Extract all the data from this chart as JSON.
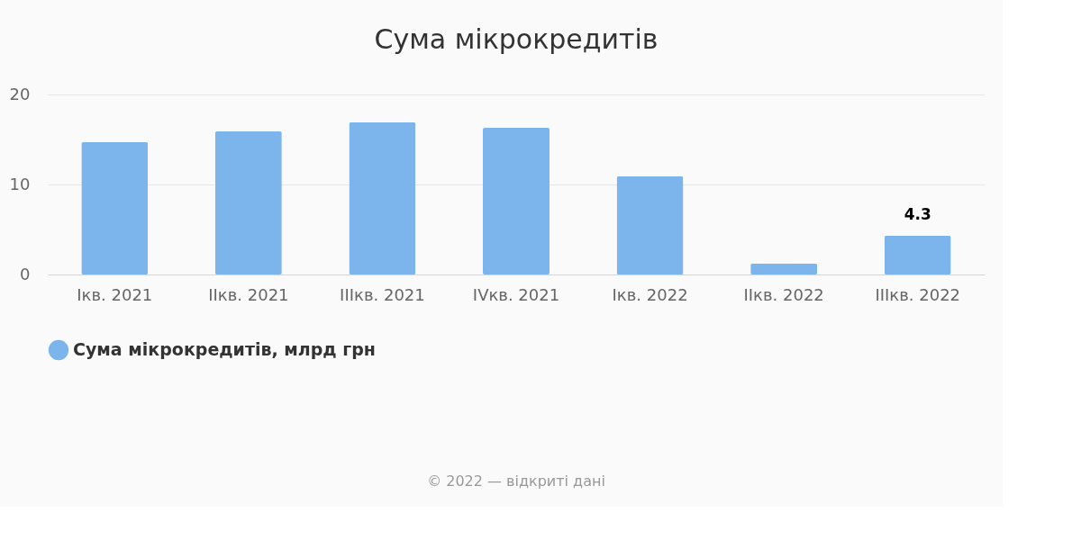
{
  "chart_data": {
    "type": "bar",
    "title": "Сума мікрокредитів",
    "categories": [
      "Ікв. 2021",
      "ІІкв. 2021",
      "ІІІкв. 2021",
      "IVкв. 2021",
      "Ікв. 2022",
      "ІІкв. 2022",
      "ІІІкв. 2022"
    ],
    "series": [
      {
        "name": "Сума мікрокредитів, млрд грн",
        "color": "#7cb5ec",
        "values": [
          14.7,
          15.9,
          16.9,
          16.3,
          10.9,
          1.2,
          4.3
        ],
        "value_labels": [
          null,
          null,
          null,
          null,
          null,
          null,
          "4.3"
        ]
      }
    ],
    "ylim": [
      0,
      20
    ],
    "yticks": [
      0,
      10,
      20
    ],
    "grid": "y",
    "legend": "bottom",
    "annotations": [
      "© 2022 — відкриті дані"
    ]
  }
}
